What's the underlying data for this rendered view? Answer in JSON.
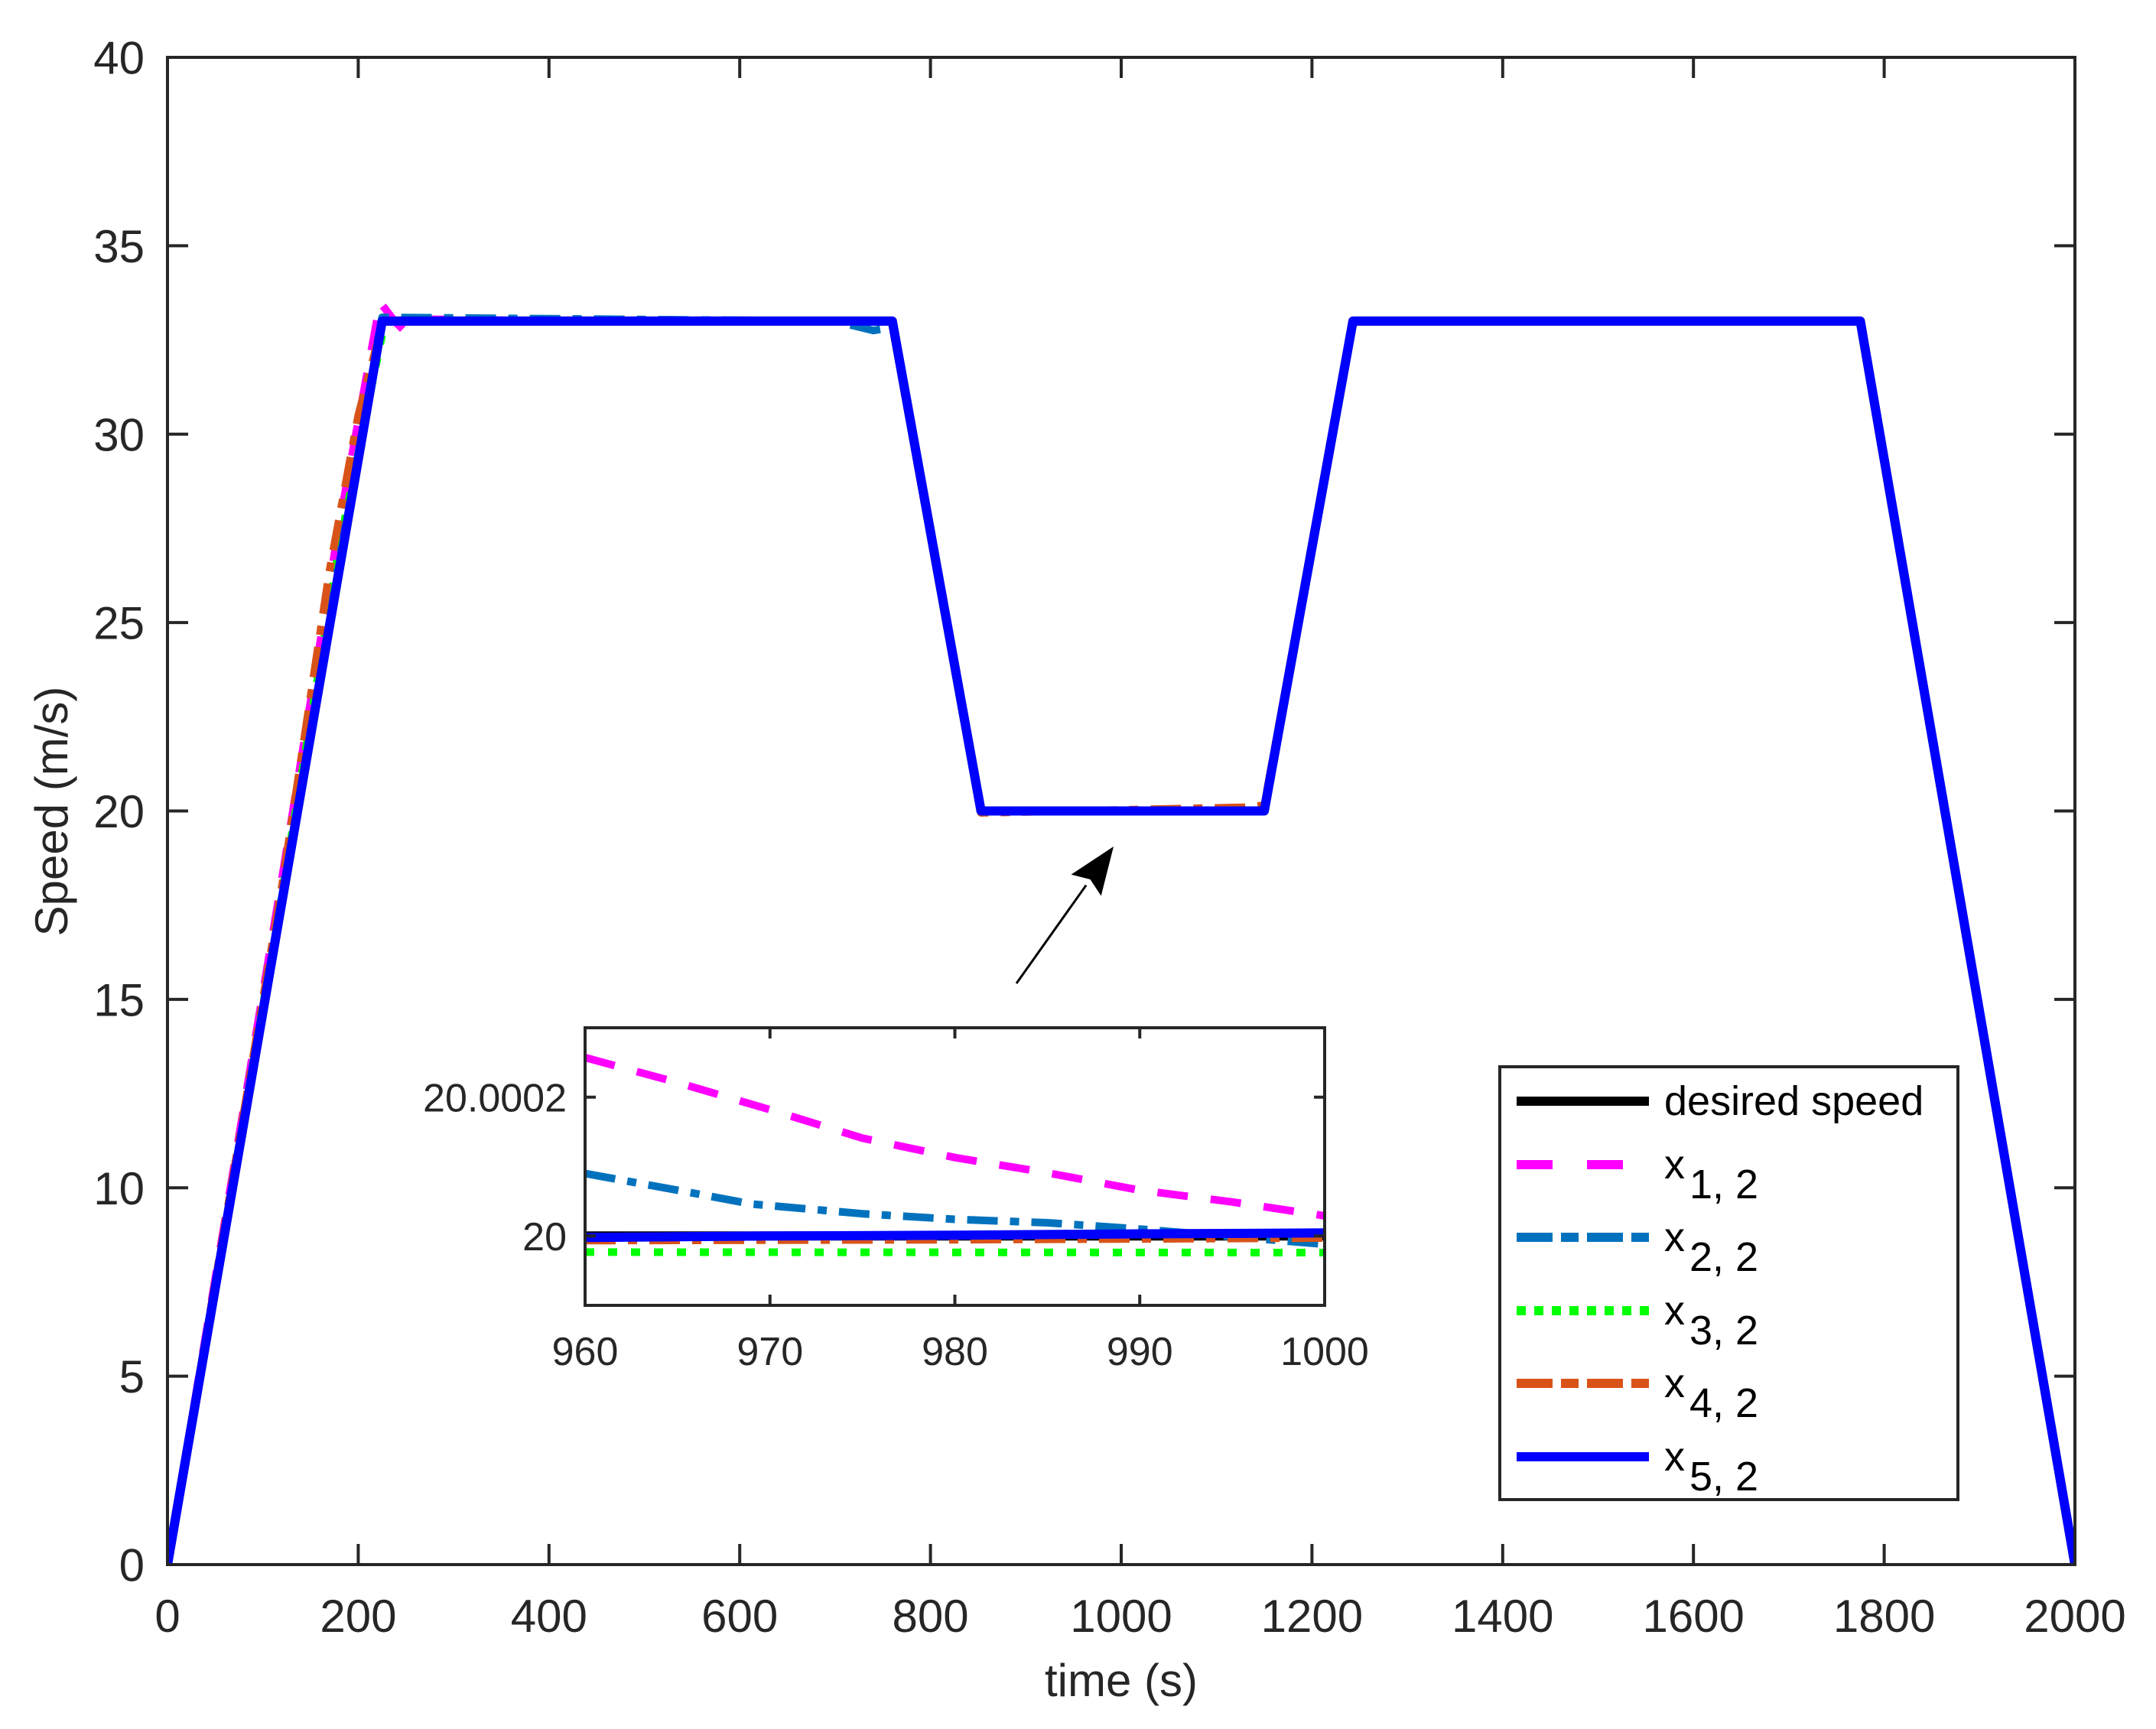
{
  "figure": {
    "background": "#ffffff",
    "axis_color": "#262626"
  },
  "chart_data": [
    {
      "id": "main",
      "type": "line",
      "title": "",
      "xlabel": "time (s)",
      "ylabel": "Speed (m/s)",
      "xlim": [
        0,
        2000
      ],
      "ylim": [
        0,
        40
      ],
      "xticks": [
        0,
        200,
        400,
        600,
        800,
        1000,
        1200,
        1400,
        1600,
        1800,
        2000
      ],
      "xtick_labels": [
        "0",
        "200",
        "400",
        "600",
        "800",
        "1000",
        "1200",
        "1400",
        "1600",
        "1800",
        "2000"
      ],
      "yticks": [
        0,
        5,
        10,
        15,
        20,
        25,
        30,
        35,
        40
      ],
      "ytick_labels": [
        "0",
        "5",
        "10",
        "15",
        "20",
        "25",
        "30",
        "35",
        "40"
      ],
      "grid": false,
      "box": true,
      "legend_position": "southeast (inside)",
      "series": [
        {
          "name": "desired speed",
          "color": "#000000",
          "style": "solid",
          "width": 12,
          "x": [
            0,
            225,
            760,
            853,
            1150,
            1243,
            1775,
            2000
          ],
          "y": [
            0,
            33,
            33,
            20,
            20,
            33,
            33,
            0
          ]
        },
        {
          "name": "x_{1,2}",
          "color": "#ff00ff",
          "style": "dashed",
          "width": 10,
          "x": [
            0,
            120,
            180,
            223,
            226,
            238,
            250,
            262,
            270,
            420,
            760,
            853,
            1150,
            1243,
            1775,
            2000
          ],
          "y": [
            0,
            18.2,
            27.6,
            33.5,
            33.4,
            33.0,
            32.7,
            33.0,
            33.05,
            33.0,
            33,
            20.0,
            20.0,
            33,
            33,
            0
          ]
        },
        {
          "name": "x_{2,2}",
          "color": "#0072bd",
          "style": "dashdot",
          "width": 10,
          "x": [
            0,
            120,
            180,
            225,
            700,
            740,
            752,
            760,
            853,
            1150,
            1243,
            1775,
            2000
          ],
          "y": [
            0,
            17.6,
            27.0,
            33.1,
            33,
            32.75,
            32.8,
            33,
            20.0,
            20.0,
            33,
            33,
            0
          ]
        },
        {
          "name": "x_{3,2}",
          "color": "#00ff00",
          "style": "dotted",
          "width": 10,
          "x": [
            0,
            120,
            180,
            228,
            760,
            853,
            1150,
            1243,
            1775,
            2000
          ],
          "y": [
            0,
            17.8,
            27.0,
            33,
            33,
            20.0,
            20.0,
            33,
            33,
            0
          ]
        },
        {
          "name": "x_{4,2}",
          "color": "#d95319",
          "style": "dashdot",
          "width": 10,
          "x": [
            0,
            120,
            170,
            200,
            226,
            760,
            853,
            1130,
            1150,
            1243,
            1775,
            2000
          ],
          "y": [
            0,
            18.0,
            26.4,
            30.5,
            33,
            33,
            19.95,
            20.1,
            20.15,
            33,
            33,
            0
          ]
        },
        {
          "name": "x_{5,2}",
          "color": "#0000ff",
          "style": "solid",
          "width": 12,
          "x": [
            0,
            225,
            760,
            853,
            1150,
            1243,
            1775,
            2000
          ],
          "y": [
            0,
            33,
            33,
            20,
            20,
            33,
            33,
            0
          ]
        }
      ]
    },
    {
      "id": "inset",
      "type": "line",
      "title": "",
      "xlabel": "",
      "ylabel": "",
      "xlim": [
        960,
        1000
      ],
      "ylim": [
        19.9999,
        20.0003
      ],
      "xticks": [
        960,
        970,
        980,
        990,
        1000
      ],
      "xtick_labels": [
        "960",
        "970",
        "980",
        "990",
        "1000"
      ],
      "yticks": [
        20,
        20.0002
      ],
      "ytick_labels": [
        "20",
        "20.0002"
      ],
      "grid": false,
      "box": true,
      "series": [
        {
          "name": "desired speed",
          "color": "#000000",
          "style": "solid",
          "width": 12,
          "x": [
            960,
            1000
          ],
          "y": [
            20.0,
            20.0
          ]
        },
        {
          "name": "x_{1,2}",
          "color": "#ff00ff",
          "style": "dashed",
          "width": 10,
          "x": [
            960,
            965,
            970,
            975,
            980,
            985,
            990,
            995,
            1000
          ],
          "y": [
            20.000257,
            20.000221,
            20.000182,
            20.000141,
            20.000113,
            20.000091,
            20.000066,
            20.000049,
            20.000029
          ]
        },
        {
          "name": "x_{2,2}",
          "color": "#0072bd",
          "style": "dashdot",
          "width": 10,
          "x": [
            960,
            965,
            969,
            975,
            980,
            985,
            990,
            995,
            1000
          ],
          "y": [
            20.00009,
            20.000066,
            20.000046,
            20.000032,
            20.000024,
            20.000019,
            20.00001,
            19.999999,
            19.999988
          ]
        },
        {
          "name": "x_{3,2}",
          "color": "#00ff00",
          "style": "dotted",
          "width": 10,
          "x": [
            960,
            1000
          ],
          "y": [
            19.9999767,
            19.999976
          ]
        },
        {
          "name": "x_{4,2}",
          "color": "#d95319",
          "style": "dashdot",
          "width": 10,
          "x": [
            960,
            980,
            1000
          ],
          "y": [
            19.9999933,
            19.9999945,
            19.999997
          ]
        },
        {
          "name": "x_{5,2}",
          "color": "#0000ff",
          "style": "solid",
          "width": 12,
          "x": [
            960,
            970,
            980,
            990,
            1000
          ],
          "y": [
            19.9999978,
            20.0,
            20.000001,
            20.000003,
            20.0000044
          ]
        }
      ]
    }
  ],
  "legend": {
    "entries": [
      {
        "label": "desired speed",
        "base": "desired speed",
        "sub": ""
      },
      {
        "label": "x_{1,2}",
        "base": "x",
        "sub": "1,2"
      },
      {
        "label": "x_{2,2}",
        "base": "x",
        "sub": "2,2"
      },
      {
        "label": "x_{3,2}",
        "base": "x",
        "sub": "3,2"
      },
      {
        "label": "x_{4,2}",
        "base": "x",
        "sub": "4,2"
      },
      {
        "label": "x_{5,2}",
        "base": "x",
        "sub": "5,2"
      }
    ]
  },
  "annotation": {
    "type": "arrow",
    "from": [
      1329,
      1286
    ],
    "to": [
      1456,
      1107
    ],
    "description": "arrow pointing from inset to the 20 m/s plateau"
  }
}
